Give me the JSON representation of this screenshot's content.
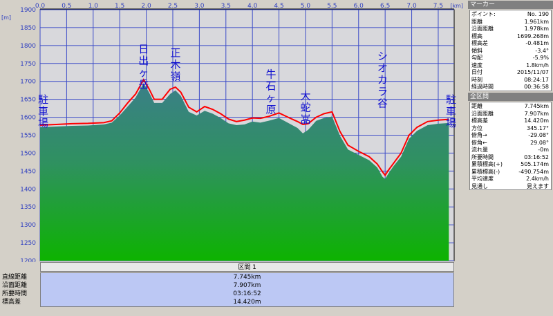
{
  "chart_data": {
    "type": "area",
    "x_unit": "[km]",
    "y_unit": "[m]",
    "xlim": [
      0,
      7.8
    ],
    "ylim": [
      1200,
      1900
    ],
    "x_ticks": [
      "0.0",
      "0.5",
      "1.0",
      "1.5",
      "2.0",
      "2.5",
      "3.0",
      "3.5",
      "4.0",
      "4.5",
      "5.0",
      "5.5",
      "6.0",
      "6.5",
      "7.0",
      "7.5"
    ],
    "y_ticks": [
      "1900",
      "1850",
      "1800",
      "1750",
      "1700",
      "1650",
      "1600",
      "1550",
      "1500",
      "1450",
      "1400",
      "1350",
      "1300",
      "1250",
      "1200"
    ],
    "grid": true,
    "series": [
      {
        "role": "track-elevation",
        "color": "#ff0000",
        "x": [
          0.0,
          0.3,
          0.6,
          0.9,
          1.2,
          1.35,
          1.5,
          1.65,
          1.8,
          1.95,
          2.05,
          2.15,
          2.3,
          2.45,
          2.55,
          2.65,
          2.8,
          2.95,
          3.1,
          3.25,
          3.4,
          3.55,
          3.7,
          3.85,
          4.0,
          4.15,
          4.3,
          4.5,
          4.7,
          4.85,
          4.95,
          5.05,
          5.2,
          5.35,
          5.5,
          5.65,
          5.8,
          6.0,
          6.2,
          6.35,
          6.45,
          6.5,
          6.55,
          6.65,
          6.8,
          6.95,
          7.1,
          7.3,
          7.5,
          7.7
        ],
        "y": [
          1578,
          1580,
          1582,
          1583,
          1585,
          1590,
          1612,
          1640,
          1665,
          1705,
          1680,
          1650,
          1650,
          1678,
          1684,
          1670,
          1628,
          1615,
          1630,
          1622,
          1610,
          1595,
          1588,
          1592,
          1598,
          1597,
          1602,
          1612,
          1598,
          1588,
          1580,
          1582,
          1600,
          1610,
          1615,
          1560,
          1522,
          1505,
          1490,
          1470,
          1448,
          1438,
          1450,
          1470,
          1500,
          1550,
          1572,
          1588,
          1592,
          1594
        ]
      },
      {
        "role": "terrain-profile",
        "color": "#2f8f70",
        "x": [
          0.0,
          0.3,
          0.6,
          0.9,
          1.2,
          1.35,
          1.5,
          1.65,
          1.8,
          1.95,
          2.05,
          2.15,
          2.3,
          2.45,
          2.55,
          2.65,
          2.8,
          2.95,
          3.1,
          3.25,
          3.4,
          3.55,
          3.7,
          3.85,
          4.0,
          4.15,
          4.3,
          4.5,
          4.7,
          4.85,
          4.95,
          5.05,
          5.2,
          5.35,
          5.5,
          5.65,
          5.8,
          6.0,
          6.2,
          6.35,
          6.45,
          6.5,
          6.55,
          6.65,
          6.8,
          6.95,
          7.1,
          7.3,
          7.5,
          7.7
        ],
        "y": [
          1572,
          1574,
          1576,
          1577,
          1580,
          1585,
          1605,
          1630,
          1655,
          1695,
          1670,
          1640,
          1640,
          1665,
          1675,
          1660,
          1615,
          1605,
          1618,
          1610,
          1598,
          1583,
          1578,
          1580,
          1588,
          1585,
          1590,
          1598,
          1582,
          1570,
          1555,
          1565,
          1590,
          1598,
          1602,
          1548,
          1510,
          1495,
          1480,
          1460,
          1434,
          1428,
          1440,
          1462,
          1490,
          1540,
          1562,
          1578,
          1582,
          1584
        ]
      }
    ],
    "annotations": [
      {
        "text": "駐車場",
        "x": 0.0,
        "y": 1640,
        "anchor": "left"
      },
      {
        "text": "日出ヶ岳",
        "x": 1.95,
        "y": 1780,
        "anchor": "center"
      },
      {
        "text": "正木嶺",
        "x": 2.55,
        "y": 1770,
        "anchor": "center"
      },
      {
        "text": "牛石ヶ原",
        "x": 4.35,
        "y": 1710,
        "anchor": "center"
      },
      {
        "text": "大蛇嵓",
        "x": 5.0,
        "y": 1650,
        "anchor": "center"
      },
      {
        "text": "シオカラ谷",
        "x": 6.45,
        "y": 1760,
        "anchor": "center"
      },
      {
        "text": "駐車場",
        "x": 7.8,
        "y": 1640,
        "anchor": "right"
      }
    ]
  },
  "section": {
    "title": "区間 1",
    "rows": [
      {
        "label": "直線距離",
        "value": "7.745km"
      },
      {
        "label": "沿面距離",
        "value": "7.907km"
      },
      {
        "label": "所要時間",
        "value": "03:16:52"
      },
      {
        "label": "標高差",
        "value": "14.420m"
      }
    ]
  },
  "marker": {
    "title": "マーカー",
    "rows": [
      {
        "label": "ポイント:",
        "value": "No. 190"
      },
      {
        "label": "距離",
        "value": "1.961km"
      },
      {
        "label": "沿面距離",
        "value": "1.978km"
      },
      {
        "label": "標高",
        "value": "1699.268m"
      },
      {
        "label": "標高差",
        "value": "-0.481m"
      },
      {
        "label": "傾斜",
        "value": "-3.4°"
      },
      {
        "label": "勾配",
        "value": "-5.9%"
      },
      {
        "label": "速度",
        "value": "1.8km/h"
      },
      {
        "label": "日付",
        "value": "2015/11/07"
      },
      {
        "label": "時刻",
        "value": "08:24:17"
      },
      {
        "label": "経過時間",
        "value": "00:36:58"
      }
    ]
  },
  "total": {
    "title": "全区間",
    "rows": [
      {
        "label": "距離",
        "value": "7.745km"
      },
      {
        "label": "沿面距離",
        "value": "7.907km"
      },
      {
        "label": "標高差",
        "value": "14.420m"
      },
      {
        "label": "方位",
        "value": "345.17°"
      },
      {
        "label": "俯角→",
        "value": "-29.08°"
      },
      {
        "label": "俯角←",
        "value": "29.08°"
      },
      {
        "label": "流れ量",
        "value": "-0m"
      },
      {
        "label": "所要時間",
        "value": "03:16:52"
      },
      {
        "label": "累積標高(+)",
        "value": "505.174m"
      },
      {
        "label": "累積標高(-)",
        "value": "-490.754m"
      },
      {
        "label": "平均速度",
        "value": "2.4km/h"
      },
      {
        "label": "見通し",
        "value": "見えます"
      }
    ]
  }
}
